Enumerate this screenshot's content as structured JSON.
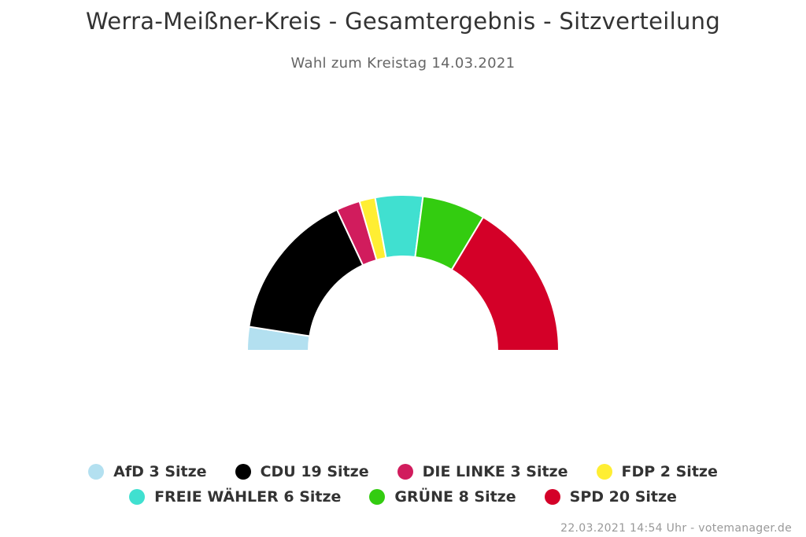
{
  "chart_data": {
    "type": "pie",
    "variant": "parliament-semicircle",
    "title": "Werra-Meißner-Kreis - Gesamtergebnis - Sitzverteilung",
    "subtitle": "Wahl zum Kreistag 14.03.2021",
    "unit_label": "Sitze",
    "series": [
      {
        "name": "AfD",
        "value": 3,
        "color": "#b3e0f0"
      },
      {
        "name": "CDU",
        "value": 19,
        "color": "#000000"
      },
      {
        "name": "DIE LINKE",
        "value": 3,
        "color": "#d11c5d"
      },
      {
        "name": "FDP",
        "value": 2,
        "color": "#ffee33"
      },
      {
        "name": "FREIE WÄHLER",
        "value": 6,
        "color": "#40e0d0"
      },
      {
        "name": "GRÜNE",
        "value": 8,
        "color": "#33cc10"
      },
      {
        "name": "SPD",
        "value": 20,
        "color": "#d40028"
      }
    ],
    "legend_entries": [
      "AfD 3 Sitze",
      "CDU 19 Sitze",
      "DIE LINKE 3 Sitze",
      "FDP 2 Sitze",
      "FREIE WÄHLER 6 Sitze",
      "GRÜNE 8 Sitze",
      "SPD 20 Sitze"
    ],
    "legend_position": "bottom-center"
  },
  "credits": "22.03.2021 14:54 Uhr - votemanager.de"
}
